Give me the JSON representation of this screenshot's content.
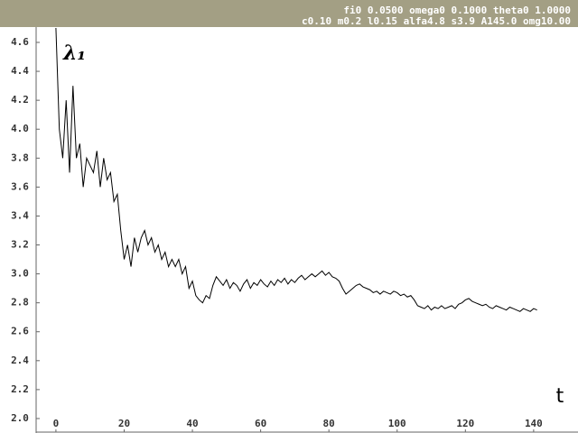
{
  "chart_data": {
    "type": "line",
    "header": [
      "fi0 0.0500 omega0  0.1000 theta0  1.0000",
      "c0.10 m0.2 l0.15 alfa4.8 s3.9 A145.0 omg10.00"
    ],
    "ylabel": "λ₁",
    "xlabel": "t",
    "xlim": [
      -5.8,
      153
    ],
    "ylim": [
      1.9,
      4.706
    ],
    "xticks": [
      0,
      20,
      40,
      60,
      80,
      100,
      120,
      140
    ],
    "yticks": [
      {
        "value": 2.0,
        "label": "2.0"
      },
      {
        "value": 2.2,
        "label": "2.2"
      },
      {
        "value": 2.4,
        "label": "2.4"
      },
      {
        "value": 2.6,
        "label": "2.6"
      },
      {
        "value": 2.8,
        "label": "2.8"
      },
      {
        "value": 3.0,
        "label": "3.0"
      },
      {
        "value": 3.2,
        "label": "3.2"
      },
      {
        "value": 3.4,
        "label": "3.4"
      },
      {
        "value": 3.6,
        "label": "3.6"
      },
      {
        "value": 3.8,
        "label": "3.8"
      },
      {
        "value": 4.0,
        "label": "4.0"
      },
      {
        "value": 4.2,
        "label": "4.2"
      },
      {
        "value": 4.4,
        "label": "4.4"
      },
      {
        "value": 4.6,
        "label": "4.6"
      }
    ],
    "x": [
      0,
      1,
      2,
      3,
      4,
      5,
      6,
      7,
      8,
      9,
      10,
      11,
      12,
      13,
      14,
      15,
      16,
      17,
      18,
      19,
      20,
      21,
      22,
      23,
      24,
      25,
      26,
      27,
      28,
      29,
      30,
      31,
      32,
      33,
      34,
      35,
      36,
      37,
      38,
      39,
      40,
      41,
      42,
      43,
      44,
      45,
      46,
      47,
      48,
      49,
      50,
      51,
      52,
      53,
      54,
      55,
      56,
      57,
      58,
      59,
      60,
      61,
      62,
      63,
      64,
      65,
      66,
      67,
      68,
      69,
      70,
      71,
      72,
      73,
      74,
      75,
      76,
      77,
      78,
      79,
      80,
      81,
      82,
      83,
      84,
      85,
      86,
      87,
      88,
      89,
      90,
      91,
      92,
      93,
      94,
      95,
      96,
      97,
      98,
      99,
      100,
      101,
      102,
      103,
      104,
      105,
      106,
      107,
      108,
      109,
      110,
      111,
      112,
      113,
      114,
      115,
      116,
      117,
      118,
      119,
      120,
      121,
      122,
      123,
      124,
      125,
      126,
      127,
      128,
      129,
      130,
      131,
      132,
      133,
      134,
      135,
      136,
      137,
      138,
      139,
      140,
      141
    ],
    "series": [
      {
        "color": "#000000",
        "values": [
          4.7,
          4.0,
          3.8,
          4.2,
          3.7,
          4.3,
          3.8,
          3.9,
          3.6,
          3.8,
          3.75,
          3.7,
          3.85,
          3.6,
          3.8,
          3.65,
          3.7,
          3.5,
          3.55,
          3.3,
          3.1,
          3.2,
          3.05,
          3.25,
          3.15,
          3.25,
          3.3,
          3.2,
          3.25,
          3.15,
          3.2,
          3.1,
          3.15,
          3.05,
          3.1,
          3.05,
          3.1,
          3.0,
          3.05,
          2.9,
          2.95,
          2.85,
          2.82,
          2.8,
          2.85,
          2.83,
          2.92,
          2.98,
          2.95,
          2.92,
          2.96,
          2.9,
          2.94,
          2.92,
          2.88,
          2.93,
          2.96,
          2.9,
          2.94,
          2.92,
          2.96,
          2.93,
          2.91,
          2.95,
          2.92,
          2.96,
          2.94,
          2.97,
          2.93,
          2.96,
          2.94,
          2.97,
          2.99,
          2.96,
          2.98,
          3.0,
          2.98,
          3.0,
          3.02,
          2.99,
          3.01,
          2.98,
          2.97,
          2.95,
          2.9,
          2.86,
          2.88,
          2.9,
          2.92,
          2.93,
          2.91,
          2.9,
          2.89,
          2.87,
          2.88,
          2.86,
          2.88,
          2.87,
          2.86,
          2.88,
          2.87,
          2.85,
          2.86,
          2.84,
          2.85,
          2.82,
          2.78,
          2.77,
          2.76,
          2.78,
          2.75,
          2.77,
          2.76,
          2.78,
          2.76,
          2.77,
          2.78,
          2.76,
          2.79,
          2.8,
          2.82,
          2.83,
          2.81,
          2.8,
          2.79,
          2.78,
          2.79,
          2.77,
          2.76,
          2.78,
          2.77,
          2.76,
          2.75,
          2.77,
          2.76,
          2.75,
          2.74,
          2.76,
          2.75,
          2.74,
          2.76,
          2.75
        ]
      }
    ]
  }
}
